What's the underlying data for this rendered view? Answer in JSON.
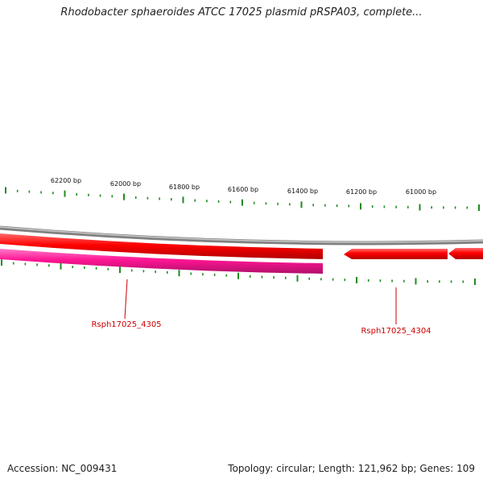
{
  "title": "Rhodobacter sphaeroides ATCC 17025 plasmid pRSPA03, complete...",
  "ruler": {
    "labels": [
      "62200 bp",
      "62000 bp",
      "61800 bp",
      "61600 bp",
      "61400 bp",
      "61200 bp",
      "61000 bp"
    ]
  },
  "genes": [
    {
      "name": "Rsph17025_4305",
      "strand": "-",
      "color": "#ff1493"
    },
    {
      "name": "Rsph17025_4304",
      "strand": "+",
      "color": "#ff0000"
    }
  ],
  "colors": {
    "backbone": "#808080",
    "forward_strand": "#ff0000",
    "reverse_strand": "#ff1493",
    "tick": "#228b22",
    "gene_label": "#cc0000"
  },
  "footer": {
    "accession": "Accession: NC_009431",
    "summary": "Topology: circular; Length: 121,962 bp; Genes: 109"
  }
}
